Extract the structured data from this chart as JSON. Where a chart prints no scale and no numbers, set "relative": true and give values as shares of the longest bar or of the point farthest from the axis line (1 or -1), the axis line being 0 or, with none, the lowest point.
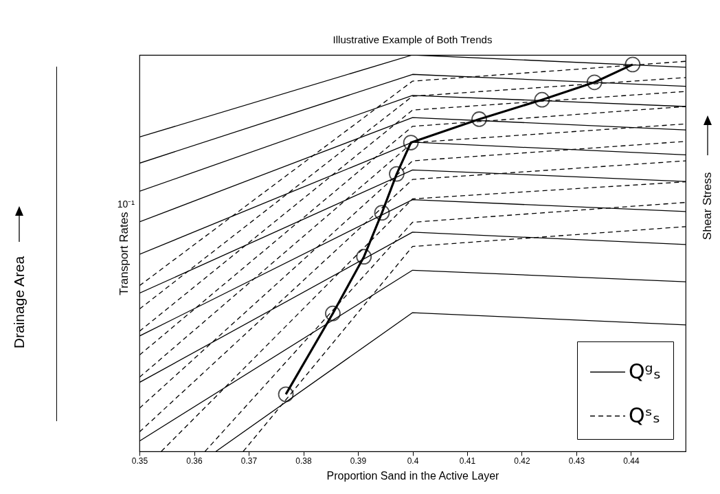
{
  "chart_data": {
    "type": "line",
    "title": "Illustrative Example of Both Trends",
    "xlabel": "Proportion Sand in the Active Layer",
    "ylabel": "Transport Rates",
    "annotations": [
      "Drainage Area",
      "Shear Stress",
      "10⁻¹"
    ],
    "x": [
      0.35,
      0.4,
      0.45
    ],
    "xlim": [
      0.35,
      0.45
    ],
    "xticks": [
      0.35,
      0.36,
      0.37,
      0.38,
      0.39,
      0.4,
      0.41,
      0.42,
      0.43,
      0.44
    ],
    "relative": true,
    "legend": "bottom right",
    "series": [
      {
        "name": "Qᵍₛ",
        "color": "#000000",
        "line_style": "solid",
        "values": [
          0.793,
          1,
          0.969
        ]
      },
      {
        "color": "#000000",
        "line_style": "solid",
        "values": [
          0.727,
          0.951,
          0.921
        ]
      },
      {
        "color": "#000000",
        "line_style": "solid",
        "values": [
          0.656,
          0.898,
          0.87
        ]
      },
      {
        "color": "#000000",
        "line_style": "solid",
        "values": [
          0.579,
          0.842,
          0.811
        ]
      },
      {
        "color": "#000000",
        "line_style": "solid",
        "values": [
          0.497,
          0.78,
          0.748
        ]
      },
      {
        "color": "#000000",
        "line_style": "solid",
        "values": [
          0.399,
          0.71,
          0.681
        ]
      },
      {
        "color": "#000000",
        "line_style": "solid",
        "values": [
          0.291,
          0.635,
          0.605
        ]
      },
      {
        "color": "#000000",
        "line_style": "solid",
        "values": [
          0.174,
          0.553,
          0.522
        ]
      },
      {
        "color": "#000000",
        "line_style": "solid",
        "values": [
          0.026,
          0.457,
          0.428
        ]
      },
      {
        "color": "#000000",
        "line_style": "solid",
        "x": [
          0.364,
          0.4,
          0.45
        ],
        "values": [
          0,
          0.35,
          0.319
        ]
      },
      {
        "name": "Qˢₛ",
        "color": "#000000",
        "line_style": "dashed",
        "values": [
          0.418,
          0.934,
          0.984
        ]
      },
      {
        "color": "#000000",
        "line_style": "dashed",
        "values": [
          0.359,
          0.896,
          0.943
        ]
      },
      {
        "color": "#000000",
        "line_style": "dashed",
        "values": [
          0.303,
          0.861,
          0.908
        ]
      },
      {
        "color": "#000000",
        "line_style": "dashed",
        "values": [
          0.243,
          0.82,
          0.87
        ]
      },
      {
        "color": "#000000",
        "line_style": "dashed",
        "values": [
          0.187,
          0.779,
          0.826
        ]
      },
      {
        "color": "#000000",
        "line_style": "dashed",
        "values": [
          0.109,
          0.733,
          0.782
        ]
      },
      {
        "color": "#000000",
        "line_style": "dashed",
        "values": [
          0.049,
          0.686,
          0.733
        ]
      },
      {
        "color": "#000000",
        "line_style": "dashed",
        "x": [
          0.354,
          0.4,
          0.45
        ],
        "values": [
          0,
          0.637,
          0.68
        ]
      },
      {
        "color": "#000000",
        "line_style": "dashed",
        "x": [
          0.362,
          0.4,
          0.45
        ],
        "values": [
          0,
          0.578,
          0.628
        ]
      },
      {
        "color": "#000000",
        "line_style": "dashed",
        "x": [
          0.369,
          0.4,
          0.45
        ],
        "values": [
          0,
          0.517,
          0.567
        ]
      },
      {
        "color": "#000000",
        "line_style": "solid",
        "marker": "circle",
        "x": [
          0.3768,
          0.3854,
          0.3911,
          0.3944,
          0.3971,
          0.3997,
          0.4122,
          0.4237,
          0.4333,
          0.4403
        ],
        "values": [
          0.144,
          0.348,
          0.491,
          0.602,
          0.7,
          0.779,
          0.838,
          0.887,
          0.931,
          0.976
        ]
      }
    ]
  }
}
